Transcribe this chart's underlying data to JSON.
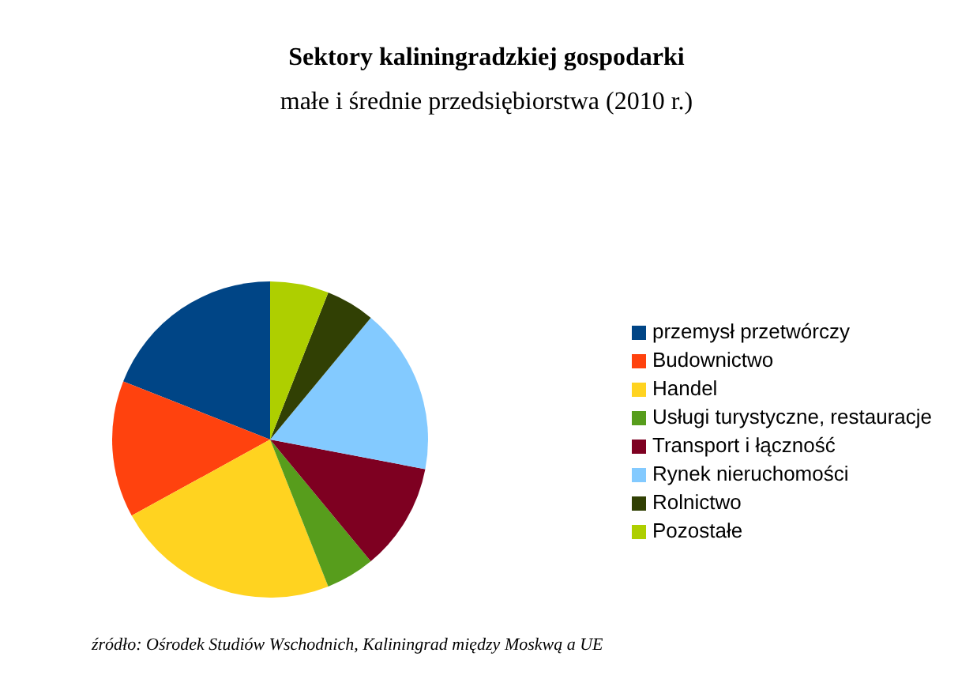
{
  "chart_data": {
    "type": "pie",
    "title": "Sektory kaliningradzkiej gospodarki",
    "subtitle": "małe i średnie przedsiębiorstwa (2010 r.)",
    "categories": [
      "przemysł przetwórczy",
      "Budownictwo",
      "Handel",
      "Usługi turystyczne, restauracje",
      "Transport i łączność",
      "Rynek nieruchomości",
      "Rolnictwo",
      "Pozostałe"
    ],
    "values": [
      19,
      14,
      23,
      5,
      11,
      17,
      5,
      6
    ],
    "colors": [
      "#004586",
      "#ff420e",
      "#ffd320",
      "#579d1c",
      "#7e0021",
      "#83caff",
      "#314004",
      "#aecf00"
    ],
    "legend": "right",
    "annotations": [
      "źródło: Ośrodek Studiów Wschodnich, Kaliningrad między Moskwą a UE"
    ]
  }
}
